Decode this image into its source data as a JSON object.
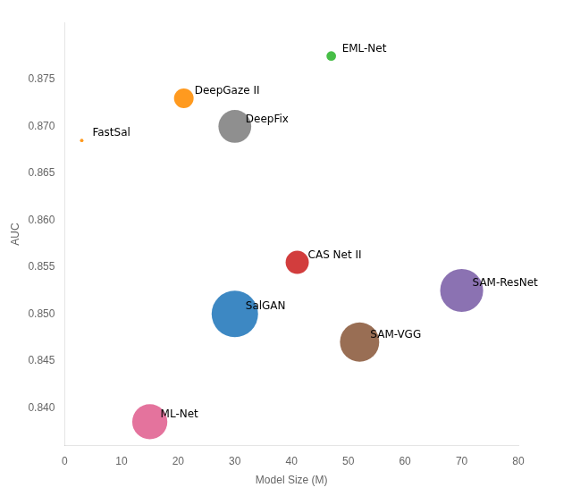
{
  "chart_data": {
    "type": "scatter",
    "labels": [
      "EML-Net",
      "DeepGaze II",
      "DeepFix",
      "FastSal",
      "CAS Net II",
      "SAM-ResNet",
      "SalGAN",
      "SAM-VGG",
      "ML-Net"
    ],
    "x": [
      47,
      21,
      30,
      3,
      41,
      70,
      30,
      52,
      15
    ],
    "values": [
      0.8775,
      0.873,
      0.87,
      0.8685,
      0.8555,
      0.8525,
      0.85,
      0.847,
      0.8385
    ],
    "sizes": [
      60,
      250,
      700,
      8,
      350,
      1200,
      1400,
      1000,
      800
    ],
    "colors": [
      "#2db52d",
      "#ff8c00",
      "#808080",
      "#ff8c00",
      "#cc2222",
      "#7b5ea7",
      "#2277bb",
      "#8b5a3c",
      "#e06090"
    ],
    "xlabel": "Model Size (M)",
    "ylabel": "AUC",
    "xlim": [
      0,
      80
    ],
    "ylim": [
      0.836,
      0.881
    ],
    "xticks": [
      0,
      10,
      20,
      30,
      40,
      50,
      60,
      70,
      80
    ],
    "yticks": [
      {
        "value": 0.84,
        "label": "0.840"
      },
      {
        "value": 0.845,
        "label": "0.845"
      },
      {
        "value": 0.85,
        "label": "0.850"
      },
      {
        "value": 0.855,
        "label": "0.855"
      },
      {
        "value": 0.86,
        "label": "0.860"
      },
      {
        "value": 0.865,
        "label": "0.865"
      },
      {
        "value": 0.87,
        "label": "0.870"
      },
      {
        "value": 0.875,
        "label": "0.875"
      }
    ],
    "grid": false
  }
}
